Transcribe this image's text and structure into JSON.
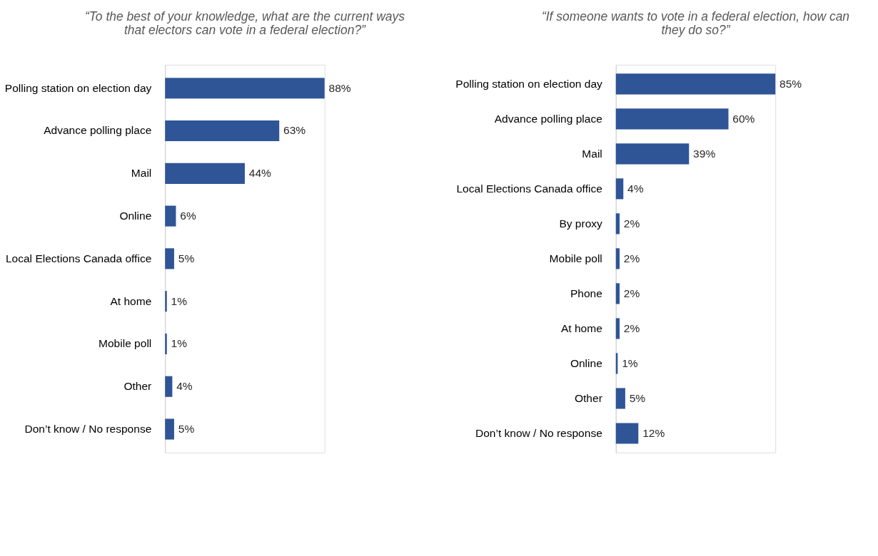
{
  "chart_data": [
    {
      "type": "bar",
      "orientation": "horizontal",
      "title": "“To the best of your knowledge, what are the current ways that electors can vote in a federal election?”",
      "categories": [
        "Polling station on election day",
        "Advance polling place",
        "Mail",
        "Online",
        "Local Elections Canada office",
        "At home",
        "Mobile poll",
        "Other",
        "Don’t know / No response"
      ],
      "values": [
        88,
        63,
        44,
        6,
        5,
        1,
        1,
        4,
        5
      ],
      "value_labels": [
        "88%",
        "63%",
        "44%",
        "6%",
        "5%",
        "1%",
        "1%",
        "4%",
        "5%"
      ],
      "color": "#2f5597",
      "tick_labels": "y"
    },
    {
      "type": "bar",
      "orientation": "horizontal",
      "title": "“If someone wants to vote in a federal election, how can they do so?”",
      "categories": [
        "Polling station on election day",
        "Advance polling place",
        "Mail",
        "Local Elections Canada office",
        "By proxy",
        "Mobile poll",
        "Phone",
        "At home",
        "Online",
        "Other",
        "Don’t know / No response"
      ],
      "values": [
        85,
        60,
        39,
        4,
        2,
        2,
        2,
        2,
        1,
        5,
        12
      ],
      "value_labels": [
        "85%",
        "60%",
        "39%",
        "4%",
        "2%",
        "2%",
        "2%",
        "2%",
        "1%",
        "5%",
        "12%"
      ],
      "color": "#2f5597",
      "tick_labels": "y"
    }
  ]
}
